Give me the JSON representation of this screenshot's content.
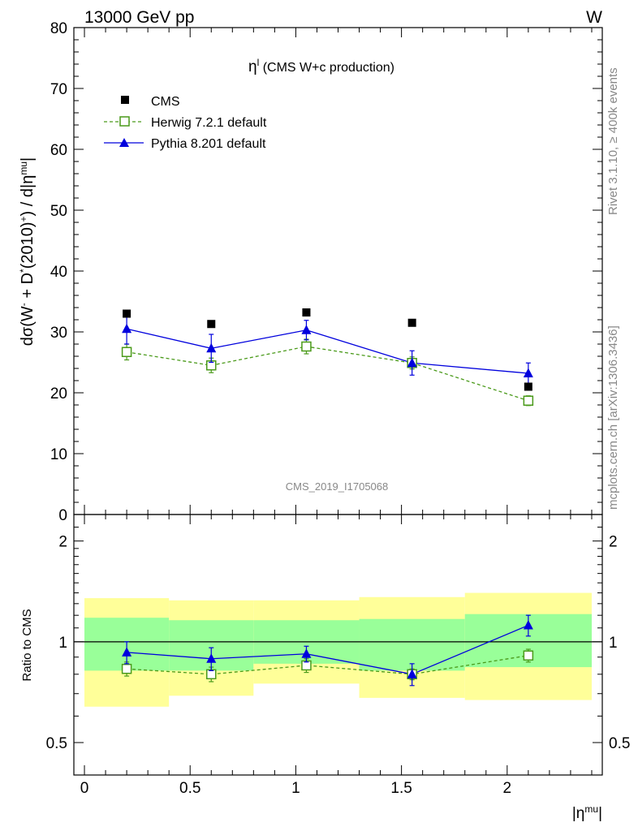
{
  "header": {
    "left_text": "13000 GeV pp",
    "right_text": "W"
  },
  "plot_title": {
    "symbol": "η",
    "superscript": "l",
    "text": " (CMS W+c production)"
  },
  "side_labels": {
    "rivet": "Rivet 3.1.10, ≥ 400k events",
    "mcplots": "mcplots.cern.ch [arXiv:1306.3436]"
  },
  "watermark": "CMS_2019_I1705068",
  "main_panel": {
    "ylabel": {
      "p1": "dσ(W",
      "p1_sup": "-",
      "p2": " + D",
      "p2_sup": "*",
      "p3": "(2010)",
      "p3_sup": "+",
      "p4": ") / d|η",
      "p4_sup": "mu",
      "p5": "|"
    },
    "yticks": [
      "0",
      "10",
      "20",
      "30",
      "40",
      "50",
      "60",
      "70",
      "80"
    ]
  },
  "ratio_panel": {
    "ylabel": "Ratio to CMS",
    "yticks": [
      "0.5",
      "1",
      "2"
    ]
  },
  "xaxis": {
    "ticks": [
      "0",
      "0.5",
      "1",
      "1.5",
      "2"
    ],
    "label_base": "|η",
    "label_sup": "mu",
    "label_end": "|"
  },
  "legend": [
    {
      "name": "CMS",
      "marker": "square-filled",
      "color": "#000000"
    },
    {
      "name": "Herwig 7.2.1 default",
      "marker": "square-open",
      "color": "#4a9a1a"
    },
    {
      "name": "Pythia 8.201 default",
      "marker": "triangle",
      "color": "#0000dd"
    }
  ],
  "colors": {
    "cms": "#000000",
    "herwig": "#4a9a1a",
    "pythia": "#0000dd",
    "band_inner": "#99ff99",
    "band_outer": "#ffff99"
  },
  "chart_data": {
    "type": "scatter",
    "xlim": [
      -0.05,
      2.45
    ],
    "ylim": [
      0,
      80
    ],
    "ratio_ylim_log": [
      0.4,
      2.4
    ],
    "bins": [
      [
        0,
        0.4
      ],
      [
        0.4,
        0.8
      ],
      [
        0.8,
        1.3
      ],
      [
        1.3,
        1.8
      ],
      [
        1.8,
        2.4
      ]
    ],
    "x": [
      0.2,
      0.6,
      1.05,
      1.55,
      2.1
    ],
    "series": [
      {
        "name": "CMS",
        "values": [
          33.0,
          31.3,
          33.2,
          31.5,
          21.0
        ]
      },
      {
        "name": "Herwig 7.2.1 default",
        "values": [
          26.7,
          24.5,
          27.6,
          24.9,
          18.7
        ],
        "errors": [
          1.3,
          1.2,
          1.2,
          1.0,
          0.8
        ]
      },
      {
        "name": "Pythia 8.201 default",
        "values": [
          30.5,
          27.3,
          30.3,
          24.9,
          23.2
        ],
        "errors": [
          2.5,
          2.3,
          1.6,
          2.0,
          1.7
        ]
      }
    ],
    "ratio": {
      "herwig": {
        "values": [
          0.83,
          0.8,
          0.85,
          0.8,
          0.91
        ],
        "errors": [
          0.04,
          0.04,
          0.04,
          0.03,
          0.04
        ]
      },
      "pythia": {
        "values": [
          0.93,
          0.89,
          0.92,
          0.8,
          1.12
        ],
        "errors": [
          0.07,
          0.07,
          0.05,
          0.06,
          0.08
        ]
      },
      "band_inner": [
        [
          0.82,
          1.18
        ],
        [
          0.82,
          1.16
        ],
        [
          0.86,
          1.16
        ],
        [
          0.82,
          1.17
        ],
        [
          0.84,
          1.21
        ]
      ],
      "band_outer": [
        [
          0.64,
          1.35
        ],
        [
          0.69,
          1.33
        ],
        [
          0.75,
          1.33
        ],
        [
          0.68,
          1.36
        ],
        [
          0.67,
          1.4
        ]
      ]
    }
  }
}
